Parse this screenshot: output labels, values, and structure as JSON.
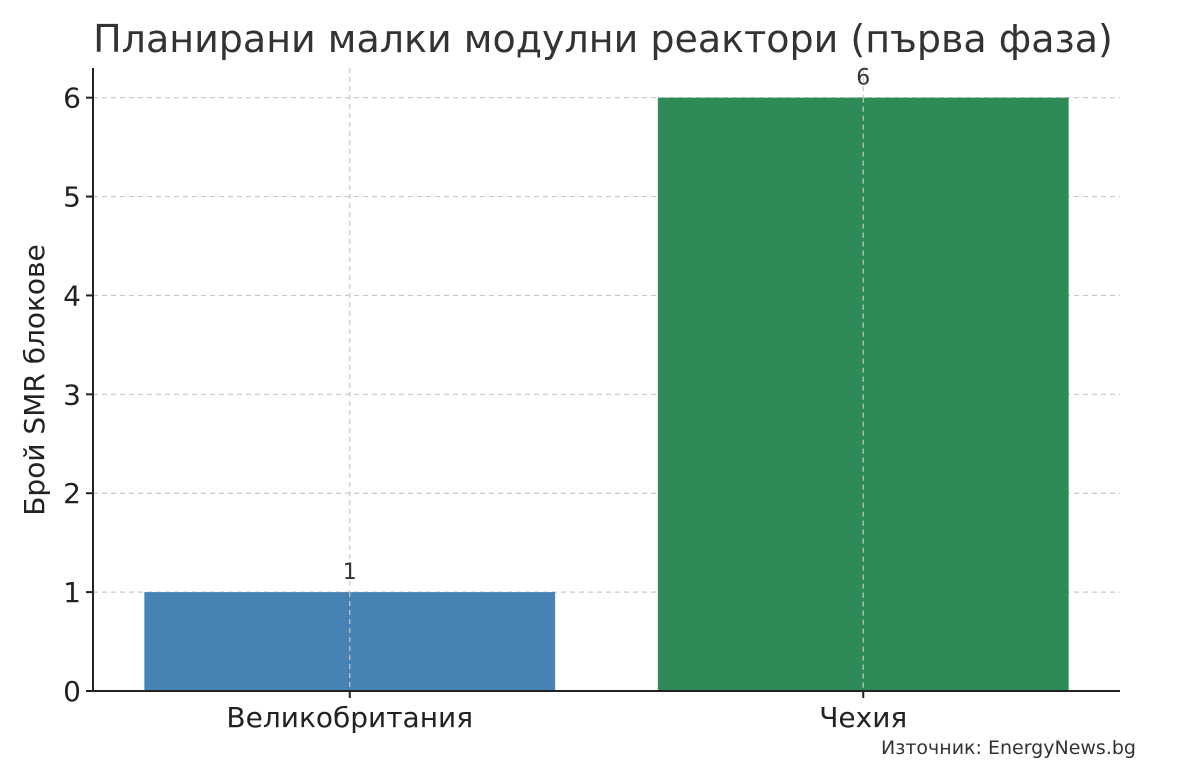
{
  "chart_data": {
    "type": "bar",
    "title": "Планирани малки модулни реактори (първа фаза)",
    "xlabel": "",
    "ylabel": "Брой SMR блокове",
    "categories": [
      "Великобритания",
      "Чехия"
    ],
    "values": [
      1,
      6
    ],
    "data_labels": [
      "1",
      "6"
    ],
    "bar_colors": [
      "#4682b4",
      "#2e8b57"
    ],
    "ylim": [
      0,
      6.3
    ],
    "yticks": [
      0,
      1,
      2,
      3,
      4,
      5,
      6
    ],
    "ytick_labels": [
      "0",
      "1",
      "2",
      "3",
      "4",
      "5",
      "6"
    ],
    "grid": true,
    "annotations": [
      "Източник: EnergyNews.bg"
    ]
  }
}
